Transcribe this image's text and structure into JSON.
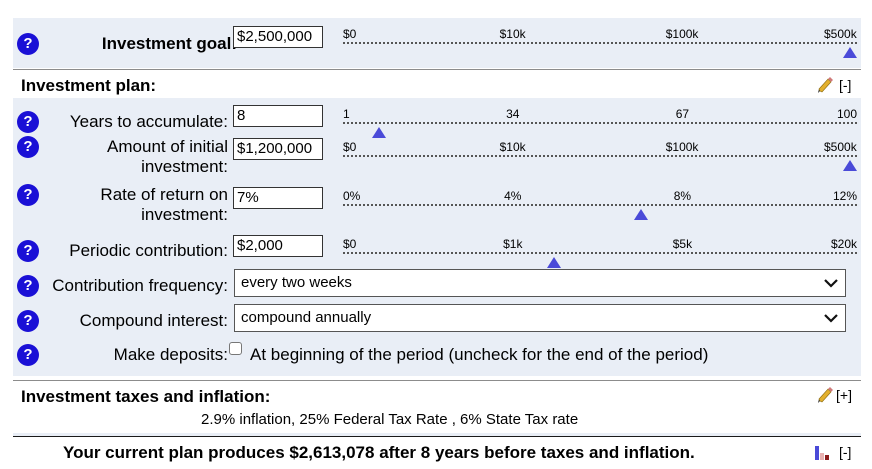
{
  "goal": {
    "label": "Investment goal:",
    "value": "$2,500,000",
    "ticks": [
      "$0",
      "$10k",
      "$100k",
      "$500k"
    ],
    "level": 1.0
  },
  "plan": {
    "title": "Investment plan:",
    "collapse": "[-]",
    "years": {
      "label": "Years to accumulate:",
      "value": "8",
      "ticks": [
        "1",
        "34",
        "67",
        "100"
      ],
      "level": 0.07
    },
    "initial": {
      "label": "Amount of initial investment:",
      "value": "$1,200,000",
      "ticks": [
        "$0",
        "$10k",
        "$100k",
        "$500k"
      ],
      "level": 1.0
    },
    "rate": {
      "label": "Rate of return on investment:",
      "value": "7%",
      "ticks": [
        "0%",
        "4%",
        "8%",
        "12%"
      ],
      "level": 0.58
    },
    "contribution": {
      "label": "Periodic contribution:",
      "value": "$2,000",
      "ticks": [
        "$0",
        "$1k",
        "$5k",
        "$20k"
      ],
      "level": 0.41
    },
    "frequency": {
      "label": "Contribution frequency:",
      "value": "every two weeks"
    },
    "compound": {
      "label": "Compound interest:",
      "value": "compound annually"
    },
    "deposits": {
      "label": "Make deposits:",
      "description": "At beginning of the period (uncheck for the end of the period)",
      "checked": false
    }
  },
  "taxes": {
    "title": "Investment taxes and inflation:",
    "expand": "[+]",
    "summary": "2.9% inflation, 25% Federal Tax Rate , 6% State Tax rate"
  },
  "result": {
    "text": "Your current plan produces $2,613,078 after 8 years before taxes and inflation.",
    "collapse": "[-]"
  },
  "help_symbol": "?",
  "colors": {
    "accent": "#1a10d6",
    "band": "#e9eef6",
    "thumb": "#4a4ad8"
  }
}
